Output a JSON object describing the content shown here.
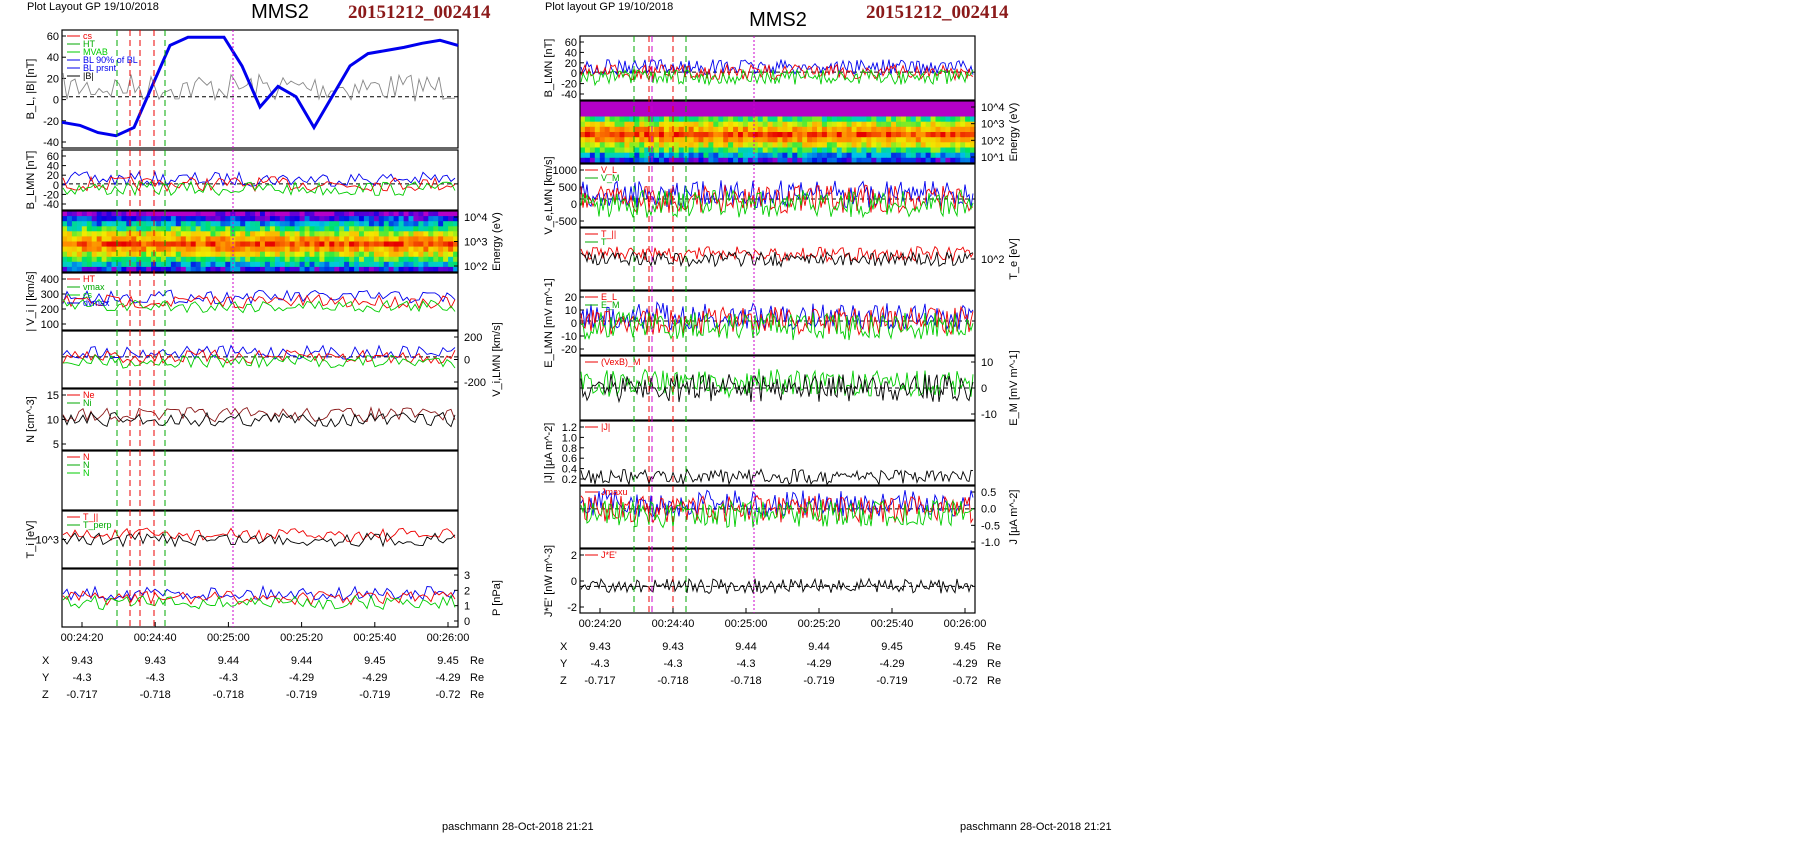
{
  "header": {
    "left_layout": "Plot Layout GP 19/10/2018",
    "right_layout": "Plot layout GP 19/10/2018",
    "spacecraft": "MMS2",
    "event_id": "20151212_002414"
  },
  "footer": {
    "signature": "paschmann 28-Oct-2018 21:21"
  },
  "colors": {
    "event": "#8b1a1a",
    "blue": "#0000ee",
    "red": "#ee0000",
    "green": "#00cc00",
    "gray": "#888888",
    "magenta": "#cc00cc",
    "cyan": "#00aaaa"
  },
  "time_axis": {
    "ticks": [
      "00:24:20",
      "00:24:40",
      "00:25:00",
      "00:25:20",
      "00:25:40",
      "00:26:00"
    ]
  },
  "ephemeris": {
    "rows": [
      {
        "name": "X",
        "values": [
          "9.43",
          "9.43",
          "9.44",
          "9.44",
          "9.45",
          "9.45"
        ],
        "unit": "Re"
      },
      {
        "name": "Y",
        "values": [
          "-4.3",
          "-4.3",
          "-4.3",
          "-4.29",
          "-4.29",
          "-4.29"
        ],
        "unit": "Re"
      },
      {
        "name": "Z",
        "values": [
          "-0.717",
          "-0.718",
          "-0.718",
          "-0.719",
          "-0.719",
          "-0.72"
        ],
        "unit": "Re"
      }
    ]
  },
  "chart_data": [
    {
      "type": "line",
      "title": "MMS2",
      "panels": [
        {
          "ylabel": "B_L, |B| [nT]",
          "yticks": [
            "60",
            "40",
            "20",
            "0",
            "-20",
            "-40"
          ],
          "ylim": [
            -50,
            65
          ],
          "legend": [
            "cs",
            "HT",
            "MVAB",
            "BL 90% of BL",
            "BL prsnt",
            "|B|"
          ],
          "series": [
            {
              "name": "BL",
              "color": "blue",
              "values": [
                -25,
                -28,
                -35,
                -38,
                -30,
                10,
                50,
                58,
                58,
                58,
                30,
                -10,
                10,
                0,
                -30,
                0,
                30,
                42,
                45,
                48,
                52,
                55,
                50
              ]
            }
          ]
        },
        {
          "ylabel": "B_LMN [nT]",
          "yticks": [
            "60",
            "40",
            "20",
            "0",
            "-20",
            "-40"
          ],
          "ylim": [
            -50,
            65
          ]
        },
        {
          "ylabel": "Energy (eV)",
          "yticks": [
            "10^4",
            "10^3",
            "10^2"
          ],
          "type": "heatmap"
        },
        {
          "ylabel": "| V_i | [km/s]",
          "yticks": [
            "400",
            "300",
            "200",
            "100"
          ],
          "ylim": [
            0,
            400
          ],
          "legend": [
            "HT",
            "vmax",
            "cs",
            "dvmax"
          ]
        },
        {
          "ylabel": "V_i,LMN [km/s]",
          "yticks": [
            "200",
            "0",
            "-200"
          ],
          "ylim": [
            -300,
            250
          ]
        },
        {
          "ylabel": "N [cm^-3]",
          "yticks": [
            "15",
            "10",
            "5"
          ],
          "ylim": [
            0,
            18
          ],
          "legend": [
            "Ne",
            "Ni"
          ]
        },
        {
          "ylabel": "",
          "yticks": [],
          "legend": [
            "N",
            "N",
            "N"
          ]
        },
        {
          "ylabel": "T_i [eV]",
          "yticks": [
            "10^3"
          ],
          "legend": [
            "T_||",
            "T_perp"
          ]
        },
        {
          "ylabel": "P [nPa]",
          "yticks": [
            "3",
            "2",
            "1",
            "0"
          ],
          "ylim": [
            0,
            3
          ]
        }
      ]
    },
    {
      "type": "line",
      "title": "MMS2",
      "panels": [
        {
          "ylabel": "B_LMN [nT]",
          "yticks": [
            "60",
            "40",
            "20",
            "0",
            "-20",
            "-40"
          ],
          "ylim": [
            -50,
            65
          ]
        },
        {
          "ylabel": "Energy (eV)",
          "yticks": [
            "10^4",
            "10^3",
            "10^2",
            "10^1"
          ],
          "type": "heatmap"
        },
        {
          "ylabel": "V_e,LMN [km/s]",
          "yticks": [
            "1000",
            "500",
            "0",
            "-500"
          ],
          "ylim": [
            -800,
            1000
          ],
          "legend": [
            "V_L",
            "V_M"
          ]
        },
        {
          "ylabel": "T_e [eV]",
          "yticks": [
            "10^2"
          ],
          "legend": [
            "T_||",
            "T"
          ]
        },
        {
          "ylabel": "E_LMN [mV m^-1]",
          "yticks": [
            "20",
            "10",
            "0",
            "-10",
            "-20"
          ],
          "ylim": [
            -25,
            22
          ],
          "legend": [
            "E_L",
            "E_M"
          ]
        },
        {
          "ylabel": "E_M [mV m^-1]",
          "yticks": [
            "10",
            "0",
            "-10"
          ],
          "ylim": [
            -15,
            15
          ],
          "legend": [
            "(VexB)_M"
          ]
        },
        {
          "ylabel": "|J| [μA m^-2]",
          "yticks": [
            "1.2",
            "1.0",
            "0.8",
            "0.6",
            "0.4",
            "0.2"
          ],
          "ylim": [
            0,
            1.3
          ],
          "legend": [
            "|J|"
          ]
        },
        {
          "ylabel": "J [μA m^-2]",
          "yticks": [
            "0.5",
            "0.0",
            "-0.5",
            "-1.0"
          ],
          "ylim": [
            -1.2,
            0.7
          ],
          "legend": [
            "Jmaxu"
          ]
        },
        {
          "ylabel": "J*E' [nW m^-3]",
          "yticks": [
            "2",
            "0",
            "-2"
          ],
          "ylim": [
            -2.5,
            3.5
          ],
          "legend": [
            "J*E'"
          ]
        }
      ]
    }
  ]
}
